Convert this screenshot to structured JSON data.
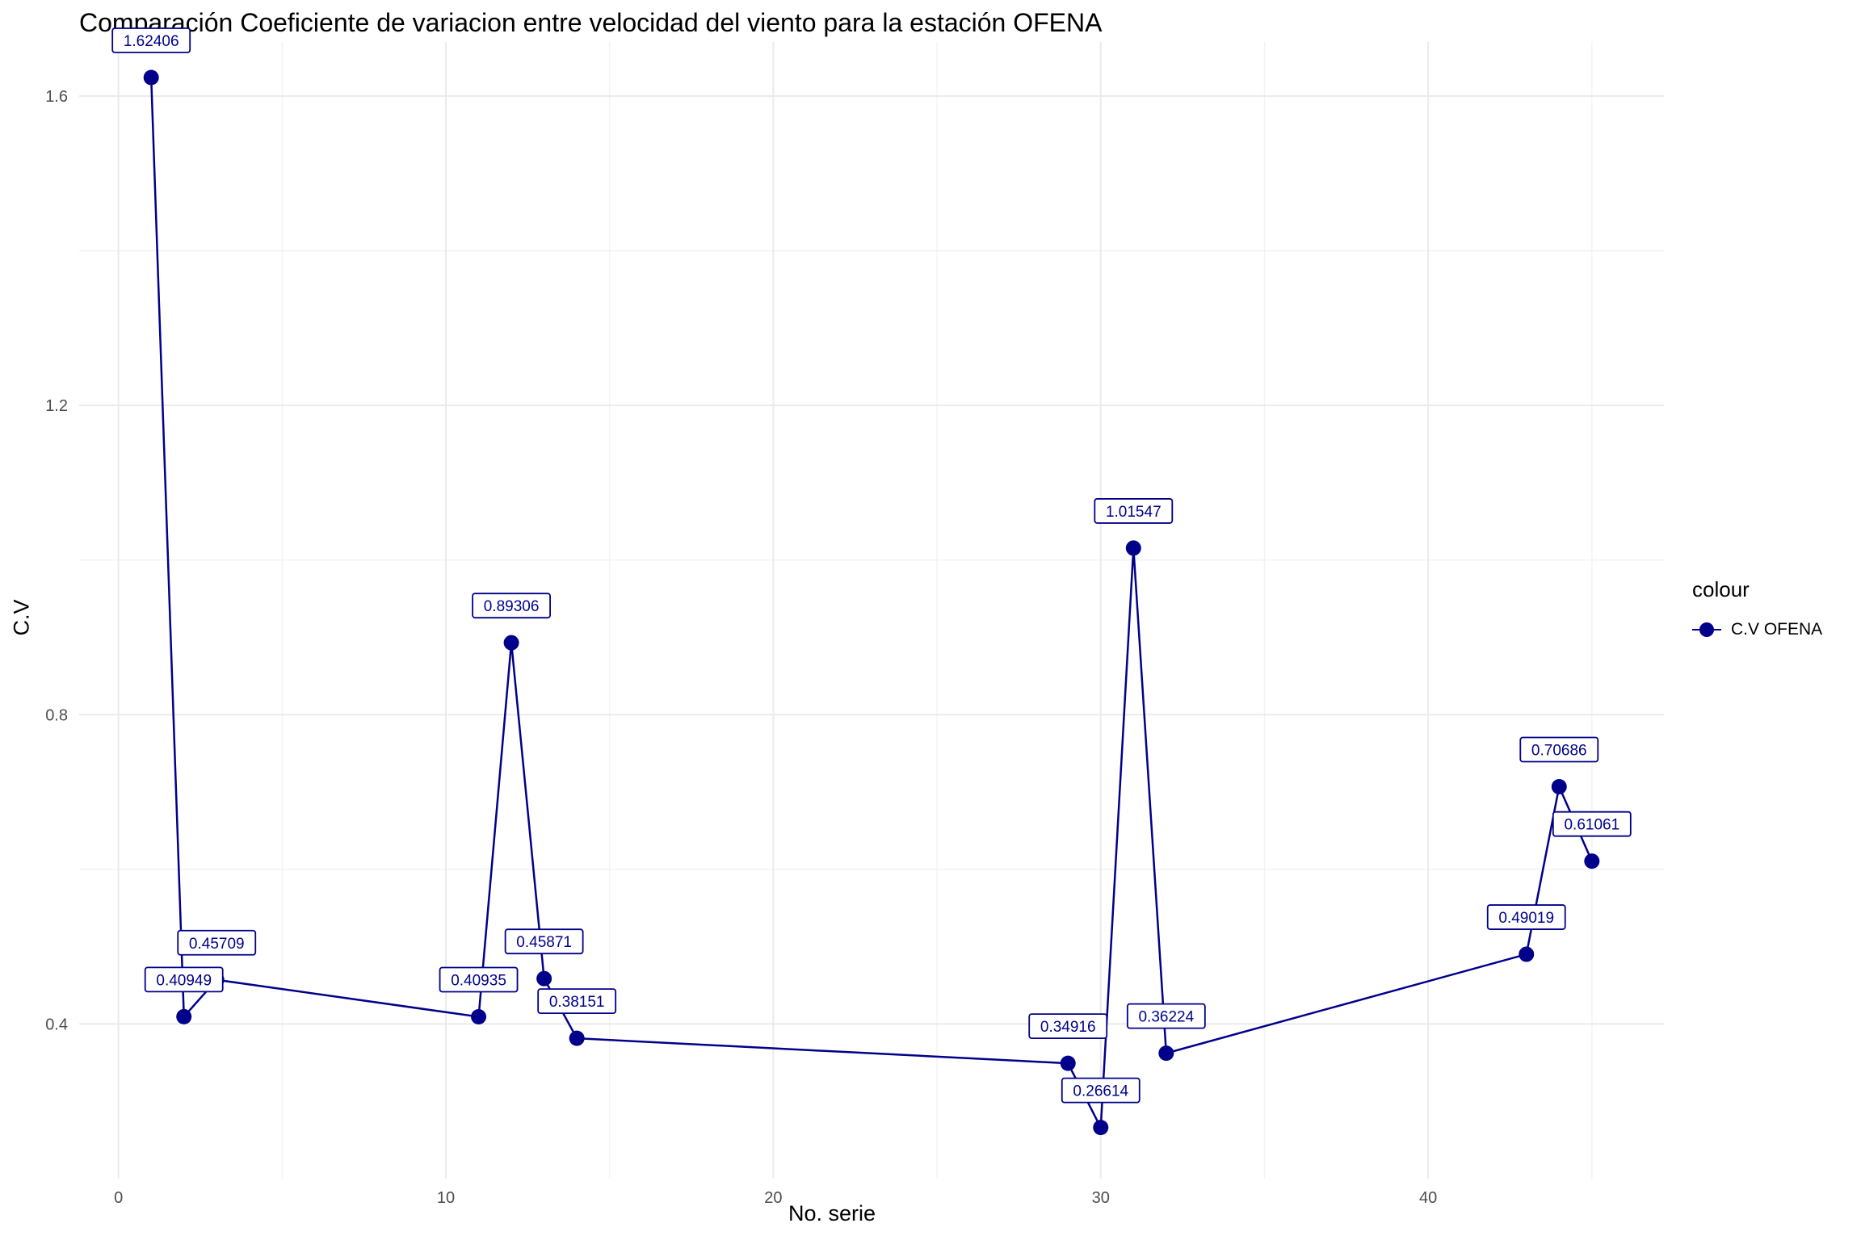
{
  "chart_data": {
    "type": "line",
    "title": "Comparación Coeficiente de variacion entre velocidad del viento para la estación OFENA",
    "xlabel": "No. serie",
    "ylabel": "C.V",
    "xlim": [
      -1.2,
      47.2
    ],
    "ylim": [
      0.2,
      1.67
    ],
    "x_ticks": [
      0,
      10,
      20,
      30,
      40
    ],
    "y_ticks": [
      0.4,
      0.8,
      1.2,
      1.6
    ],
    "grid": true,
    "legend": {
      "title": "colour",
      "position": "right"
    },
    "color": "#00008B",
    "series": [
      {
        "name": "C.V OFENA",
        "x": [
          1,
          2,
          3,
          11,
          12,
          13,
          14,
          29,
          30,
          31,
          32,
          43,
          44,
          45
        ],
        "y": [
          1.62406,
          0.40949,
          0.45709,
          0.40935,
          0.89306,
          0.45871,
          0.38151,
          0.34916,
          0.26614,
          1.01547,
          0.36224,
          0.49019,
          0.70686,
          0.61061
        ],
        "labels": [
          "1.62406",
          "0.40949",
          "0.45709",
          "0.40935",
          "0.89306",
          "0.45871",
          "0.38151",
          "0.34916",
          "0.26614",
          "1.01547",
          "0.36224",
          "0.49019",
          "0.70686",
          "0.61061"
        ]
      }
    ]
  }
}
